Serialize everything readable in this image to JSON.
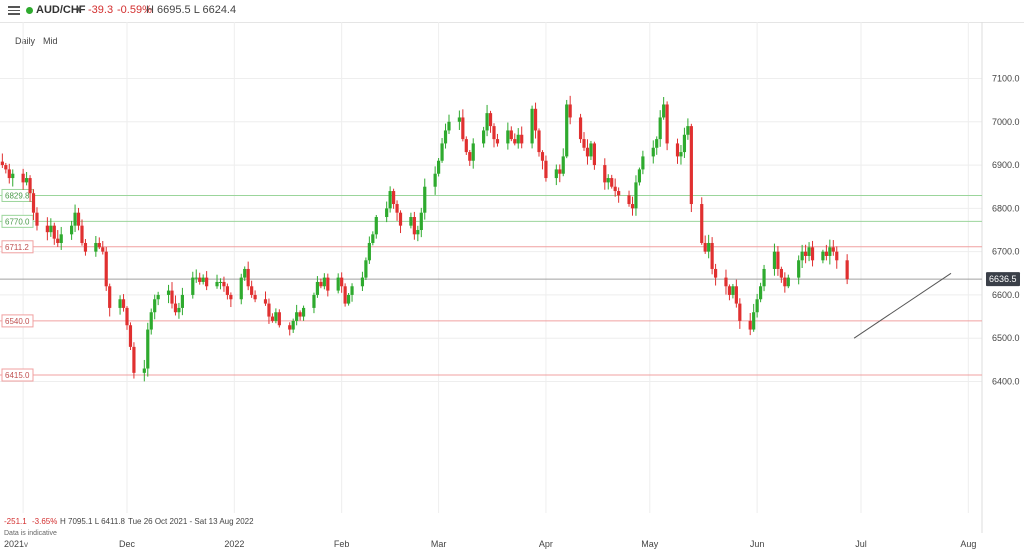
{
  "header": {
    "symbol": "AUD/CHF",
    "change": "-39.3",
    "change_pct": "-0.59%",
    "high_low": "H 6695.5  L 6624.4"
  },
  "controls": {
    "interval": "Daily",
    "price_type": "Mid"
  },
  "summary": {
    "change": "-251.1",
    "change_pct": "-3.65%",
    "hl": "H 7095.1  L 6411.8",
    "range": "Tue 26 Oct 2021 - Sat 13 Aug 2022",
    "note": "Data is indicative"
  },
  "colors": {
    "up": "#2eaa2e",
    "down": "#e03030",
    "green_line": "#9bd59b",
    "red_line": "#f0a0a0",
    "grey_line": "#a0a0a0",
    "trend": "#555555",
    "badge_bg": "#3a3f48"
  },
  "chart_data": {
    "type": "candlestick",
    "ylim": [
      6380,
      7130
    ],
    "y_ticks": [
      "6400.0",
      "6500.0",
      "6600.0",
      "6700.0",
      "6800.0",
      "6900.0",
      "7000.0",
      "7100.0"
    ],
    "x_ticks": [
      "2021",
      "Dec",
      "2022",
      "Feb",
      "Mar",
      "Apr",
      "May",
      "Jun",
      "Jul",
      "Aug"
    ],
    "x_tick_dates": [
      "2021-11-01",
      "2021-12-01",
      "2022-01-01",
      "2022-02-01",
      "2022-03-01",
      "2022-04-01",
      "2022-05-01",
      "2022-06-01",
      "2022-07-01",
      "2022-08-01"
    ],
    "first_candle_date": "2021-10-26",
    "last_price": "6636.5",
    "horizontal_levels": [
      {
        "value": 6829.8,
        "label": "6829.8",
        "color": "green"
      },
      {
        "value": 6770.0,
        "label": "6770.0",
        "color": "green"
      },
      {
        "value": 6711.2,
        "label": "6711.2",
        "color": "red"
      },
      {
        "value": 6636.5,
        "label": "",
        "color": "grey"
      },
      {
        "value": 6540.0,
        "label": "6540.0",
        "color": "red"
      },
      {
        "value": 6415.0,
        "label": "6415.0",
        "color": "red"
      }
    ],
    "trendline": {
      "from": [
        "2022-06-29",
        6500
      ],
      "to": [
        "2022-07-27",
        6650
      ]
    },
    "closes": [
      6900,
      6890,
      6870,
      6880,
      6860,
      6870,
      6835,
      6790,
      6760,
      6745,
      6760,
      6730,
      6720,
      6740,
      6760,
      6790,
      6760,
      6720,
      6700,
      6720,
      6710,
      6700,
      6620,
      6570,
      6590,
      6570,
      6530,
      6480,
      6420,
      6430,
      6520,
      6560,
      6590,
      6600,
      6610,
      6580,
      6560,
      6570,
      6600,
      6640,
      6640,
      6630,
      6640,
      6620,
      6630,
      6630,
      6620,
      6600,
      6590,
      6640,
      6660,
      6620,
      6600,
      6590,
      6580,
      6550,
      6540,
      6560,
      6530,
      6520,
      6540,
      6560,
      6550,
      6570,
      6600,
      6630,
      6620,
      6640,
      6610,
      6640,
      6620,
      6580,
      6600,
      6620,
      6640,
      6680,
      6720,
      6740,
      6780,
      6800,
      6840,
      6810,
      6790,
      6760,
      6780,
      6740,
      6750,
      6790,
      6850,
      6880,
      6910,
      6950,
      6980,
      7000,
      7010,
      6960,
      6930,
      6910,
      6950,
      6980,
      7020,
      6990,
      6960,
      6950,
      6980,
      6960,
      6950,
      6970,
      6950,
      7030,
      6980,
      6930,
      6910,
      6870,
      6890,
      6880,
      6920,
      7040,
      7010,
      6960,
      6940,
      6920,
      6950,
      6900,
      6860,
      6870,
      6850,
      6840,
      6830,
      6810,
      6800,
      6860,
      6890,
      6920,
      6940,
      6960,
      7010,
      7040,
      6950,
      6920,
      6930,
      6970,
      6990,
      6810,
      6720,
      6700,
      6720,
      6660,
      6640,
      6620,
      6600,
      6620,
      6580,
      6540,
      6520,
      6560,
      6590,
      6620,
      6660,
      6700,
      6660,
      6640,
      6620,
      6640,
      6680,
      6700,
      6690,
      6710,
      6680,
      6700,
      6690,
      6710,
      6700,
      6680,
      6636.5
    ],
    "candles": []
  }
}
